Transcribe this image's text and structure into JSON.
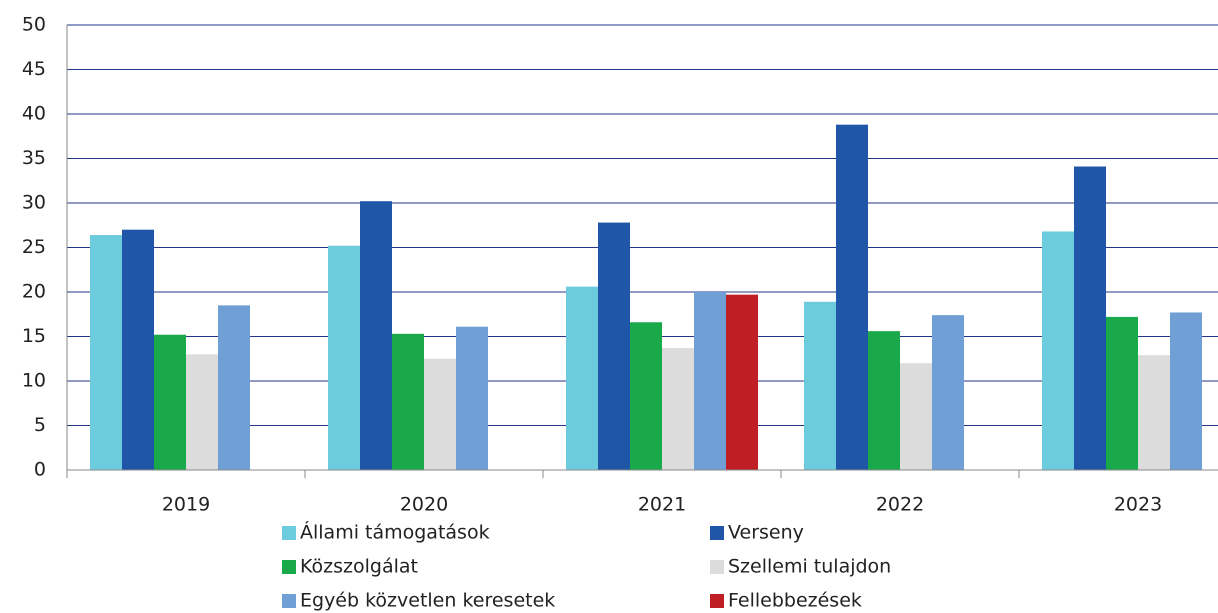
{
  "chart_data": {
    "type": "bar",
    "categories": [
      "2019",
      "2020",
      "2021",
      "2022",
      "2023"
    ],
    "series": [
      {
        "name": "Állami támogatások",
        "color": "#6ccbdc",
        "values": [
          26.4,
          25.2,
          20.6,
          18.9,
          26.8
        ]
      },
      {
        "name": "Verseny",
        "color": "#1f56a8",
        "values": [
          27.0,
          30.2,
          27.8,
          38.8,
          34.1
        ]
      },
      {
        "name": "Közszolgálat",
        "color": "#19a84a",
        "values": [
          15.2,
          15.3,
          16.6,
          15.6,
          17.2
        ]
      },
      {
        "name": "Szellemi tulajdon",
        "color": "#dcdcdc",
        "values": [
          13.0,
          12.5,
          13.7,
          12.0,
          12.9
        ]
      },
      {
        "name": "Egyéb közvetlen keresetek",
        "color": "#6f9fd4",
        "values": [
          18.5,
          16.1,
          20.0,
          17.4,
          17.7
        ]
      },
      {
        "name": "Fellebbezések",
        "color": "#be1e24",
        "values": [
          null,
          null,
          19.7,
          null,
          null
        ]
      }
    ],
    "ylim": [
      0,
      50
    ],
    "yticks": [
      0,
      5,
      10,
      15,
      20,
      25,
      30,
      35,
      40,
      45,
      50
    ],
    "grid": true,
    "legend": "bottom"
  }
}
